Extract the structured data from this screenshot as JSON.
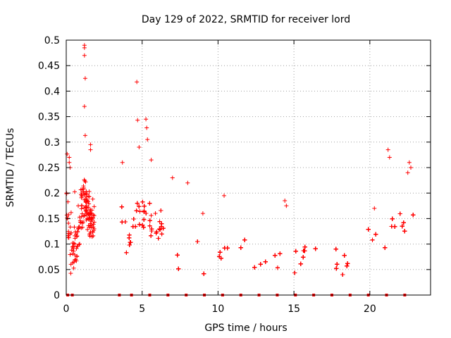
{
  "chart_data": {
    "type": "scatter",
    "title": "Day 129 of 2022, SRMTID for receiver lord",
    "xlabel": "GPS time / hours",
    "ylabel": "SRMTID / TECUs",
    "xlim": [
      0,
      24
    ],
    "ylim": [
      0,
      0.5
    ],
    "x_ticks": [
      0,
      5,
      10,
      15,
      20
    ],
    "y_ticks": [
      0,
      0.05,
      0.1,
      0.15,
      0.2,
      0.25,
      0.3,
      0.35,
      0.4,
      0.45,
      0.5
    ],
    "x_tick_labels": [
      "0",
      "5",
      "10",
      "15",
      "20"
    ],
    "y_tick_labels": [
      "0",
      "0.05",
      "0.1",
      "0.15",
      "0.2",
      "0.25",
      "0.3",
      "0.35",
      "0.4",
      "0.45",
      "0.5"
    ],
    "grid": true,
    "marker": "+",
    "series_color": "#ff0000",
    "grid_color": "#a0a0a0",
    "gap_markers_x": [
      0.1,
      0.4,
      3.5,
      4.3,
      5.5,
      6.7,
      7.9,
      9.1,
      10.3,
      11.5,
      12.7,
      13.9,
      15.1,
      16.3,
      17.5,
      18.7,
      19.9,
      21.1,
      22.3
    ],
    "segments": [
      {
        "x0": 0.0,
        "x1": 1.85,
        "base": [
          [
            0.0,
            0.18
          ],
          [
            0.3,
            0.09
          ],
          [
            0.6,
            0.1
          ],
          [
            0.9,
            0.14
          ],
          [
            1.2,
            0.2
          ],
          [
            1.5,
            0.15
          ],
          [
            1.85,
            0.13
          ]
        ],
        "spread": 0.04
      },
      {
        "x0": 3.5,
        "x1": 6.4,
        "base": [
          [
            3.5,
            0.2
          ],
          [
            3.9,
            0.13
          ],
          [
            4.3,
            0.1
          ],
          [
            4.7,
            0.18
          ],
          [
            5.1,
            0.14
          ],
          [
            5.5,
            0.15
          ],
          [
            5.9,
            0.12
          ],
          [
            6.4,
            0.12
          ]
        ],
        "spread": 0.035
      },
      {
        "x0": 6.4,
        "x1": 22.9,
        "base": [
          [
            6.4,
            0.1
          ],
          [
            7.0,
            0.09
          ],
          [
            7.5,
            0.07
          ],
          [
            8.0,
            0.13
          ],
          [
            8.5,
            0.1
          ],
          [
            9.0,
            0.08
          ],
          [
            9.5,
            0.06
          ],
          [
            10.0,
            0.07
          ],
          [
            10.5,
            0.1
          ],
          [
            11.0,
            0.07
          ],
          [
            11.5,
            0.08
          ],
          [
            12.0,
            0.1
          ],
          [
            12.5,
            0.06
          ],
          [
            13.0,
            0.06
          ],
          [
            13.5,
            0.07
          ],
          [
            14.0,
            0.08
          ],
          [
            14.5,
            0.09
          ],
          [
            15.0,
            0.05
          ],
          [
            15.5,
            0.07
          ],
          [
            16.0,
            0.06
          ],
          [
            16.5,
            0.08
          ],
          [
            17.0,
            0.07
          ],
          [
            17.5,
            0.07
          ],
          [
            18.0,
            0.06
          ],
          [
            18.5,
            0.07
          ],
          [
            19.0,
            0.08
          ],
          [
            19.5,
            0.08
          ],
          [
            20.0,
            0.1
          ],
          [
            20.5,
            0.12
          ],
          [
            21.0,
            0.1
          ],
          [
            21.5,
            0.13
          ],
          [
            22.0,
            0.12
          ],
          [
            22.5,
            0.13
          ],
          [
            22.9,
            0.15
          ]
        ],
        "spread": 0.03
      }
    ],
    "outliers": [
      [
        1.2,
        0.49
      ],
      [
        1.2,
        0.485
      ],
      [
        1.2,
        0.47
      ],
      [
        1.25,
        0.425
      ],
      [
        1.2,
        0.37
      ],
      [
        1.25,
        0.313
      ],
      [
        4.65,
        0.418
      ],
      [
        5.25,
        0.345
      ],
      [
        5.3,
        0.328
      ],
      [
        4.7,
        0.343
      ],
      [
        5.35,
        0.305
      ],
      [
        4.8,
        0.29
      ],
      [
        0.2,
        0.27
      ],
      [
        0.2,
        0.26
      ],
      [
        0.25,
        0.25
      ],
      [
        1.6,
        0.295
      ],
      [
        1.6,
        0.285
      ],
      [
        3.7,
        0.26
      ],
      [
        5.6,
        0.265
      ],
      [
        7.0,
        0.23
      ],
      [
        8.0,
        0.22
      ],
      [
        9.0,
        0.16
      ],
      [
        10.4,
        0.195
      ],
      [
        14.4,
        0.185
      ],
      [
        14.5,
        0.175
      ],
      [
        20.3,
        0.17
      ],
      [
        21.2,
        0.285
      ],
      [
        21.3,
        0.27
      ],
      [
        22.6,
        0.26
      ],
      [
        22.5,
        0.24
      ],
      [
        22.7,
        0.25
      ]
    ]
  }
}
